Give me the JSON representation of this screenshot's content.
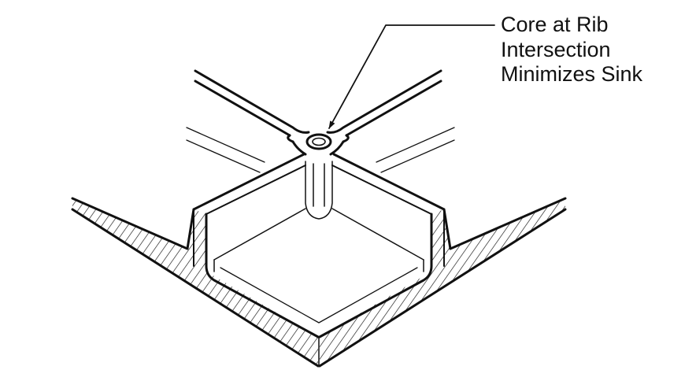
{
  "callout": {
    "lines": [
      "Core at Rib",
      "Intersection",
      "Minimizes Sink"
    ]
  },
  "colors": {
    "ink": "#111111",
    "background": "#ffffff"
  }
}
